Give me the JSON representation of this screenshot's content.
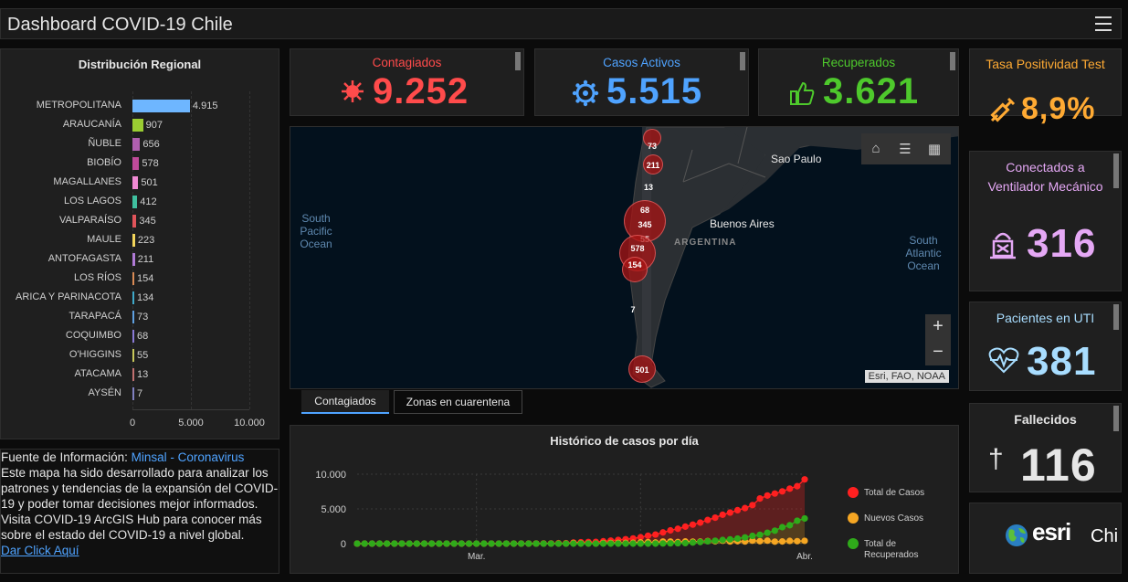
{
  "header": {
    "title": "Dashboard COVID-19 Chile"
  },
  "regional": {
    "title": "Distribución Regional",
    "rows": [
      {
        "label": "METROPOLITANA",
        "value": 4915,
        "display": "4.915",
        "color": "#6eb6ff"
      },
      {
        "label": "ARAUCANÍA",
        "value": 907,
        "display": "907",
        "color": "#9acd32"
      },
      {
        "label": "ÑUBLE",
        "value": 656,
        "display": "656",
        "color": "#b05fb0"
      },
      {
        "label": "BIOBÍO",
        "value": 578,
        "display": "578",
        "color": "#c04a9a"
      },
      {
        "label": "MAGALLANES",
        "value": 501,
        "display": "501",
        "color": "#f08ad4"
      },
      {
        "label": "LOS LAGOS",
        "value": 412,
        "display": "412",
        "color": "#3fbf9f"
      },
      {
        "label": "VALPARAÍSO",
        "value": 345,
        "display": "345",
        "color": "#e0545a"
      },
      {
        "label": "MAULE",
        "value": 223,
        "display": "223",
        "color": "#f3d55b"
      },
      {
        "label": "ANTOFAGASTA",
        "value": 211,
        "display": "211",
        "color": "#b07ad6"
      },
      {
        "label": "LOS RÍOS",
        "value": 154,
        "display": "154",
        "color": "#d98b55"
      },
      {
        "label": "ARICA Y PARINACOTA",
        "value": 134,
        "display": "134",
        "color": "#3fa9c9"
      },
      {
        "label": "TARAPACÁ",
        "value": 73,
        "display": "73",
        "color": "#5fa0e0"
      },
      {
        "label": "COQUIMBO",
        "value": 68,
        "display": "68",
        "color": "#8a7ad6"
      },
      {
        "label": "O'HIGGINS",
        "value": 55,
        "display": "55",
        "color": "#c7c75a"
      },
      {
        "label": "ATACAMA",
        "value": 13,
        "display": "13",
        "color": "#c07070"
      },
      {
        "label": "AYSÉN",
        "value": 7,
        "display": "7",
        "color": "#8080c0"
      }
    ],
    "ticks": [
      "0",
      "5.000",
      "10.000"
    ],
    "xmax": 10000
  },
  "info": {
    "prefix": "Fuente de Información: ",
    "source_link": "Minsal - Coronavirus",
    "body1": "Este mapa ha sido desarrollado para analizar los patrones y tendencias de la expansión del COVID-19 y poder tomar decisiones mejor informados.",
    "body2": "Visita COVID-19 ArcGIS Hub para conocer más sobre el estado del COVID-19 a nivel global.",
    "more_link": "Dar Click Aquí"
  },
  "kpis": {
    "contagiados": {
      "label": "Contagiados",
      "value": "9.252",
      "color": "#ff4b4b"
    },
    "activos": {
      "label": "Casos Activos",
      "value": "5.515",
      "color": "#4fa3ff"
    },
    "recuperados": {
      "label": "Recuperados",
      "value": "3.621",
      "color": "#4ec92c"
    }
  },
  "side": {
    "positividad": {
      "label": "Tasa Positividad Test",
      "value": "8,9%",
      "color": "#ffaa33"
    },
    "ventilador": {
      "label_line1": "Conectados a",
      "label_line2": "Ventilador Mecánico",
      "value": "316",
      "color": "#e5a8f5"
    },
    "uti": {
      "label": "Pacientes en UTI",
      "value": "381",
      "color": "#a8ddff"
    },
    "fallecidos": {
      "label": "Fallecidos",
      "value": "116",
      "color": "#e6e6e6"
    },
    "brand": {
      "logo": "esri",
      "suffix": "Chi"
    }
  },
  "map": {
    "ocean_left": [
      "South",
      "Pacific",
      "Ocean"
    ],
    "ocean_right": [
      "South",
      "Atlantic",
      "Ocean"
    ],
    "country": "ARGENTINA",
    "city_sp": "Sao Paulo",
    "city_ba": "Buenos Aires",
    "attribution": "Esri, FAO, NOAA",
    "clusters": [
      "73",
      "211",
      "13",
      "68",
      "345",
      "55",
      "578",
      "154",
      "7",
      "501"
    ],
    "zoom_in": "+",
    "zoom_out": "−"
  },
  "tabs": {
    "active": "Contagiados",
    "inactive": "Zonas en cuarentena"
  },
  "history": {
    "title": "Histórico de casos por día",
    "yticks": [
      "10.000",
      "5.000",
      "0"
    ],
    "xticks": [
      "Mar.",
      "Abr."
    ],
    "legend": [
      "Total de Casos",
      "Nuevos Casos",
      "Total de Recuperados"
    ]
  },
  "chart_data": {
    "type": "line",
    "title": "Histórico de casos por día",
    "xlabel": "",
    "ylabel": "",
    "ylim": [
      0,
      10000
    ],
    "x_tick_labels": [
      "Mar.",
      "Abr."
    ],
    "series": [
      {
        "name": "Total de Casos",
        "color": "#ff2020",
        "values": [
          0,
          0,
          0,
          0,
          0,
          0,
          0,
          0,
          0,
          0,
          0,
          0,
          0,
          0,
          0,
          0,
          1,
          1,
          3,
          4,
          7,
          10,
          13,
          17,
          23,
          33,
          43,
          61,
          75,
          156,
          201,
          238,
          250,
          342,
          434,
          537,
          632,
          746,
          922,
          1142,
          1306,
          1610,
          1909,
          2139,
          2449,
          2738,
          3031,
          3404,
          3737,
          4161,
          4471,
          4815,
          5116,
          5546,
          6501,
          6927,
          7213,
          7525,
          7917,
          8273,
          9252
        ]
      },
      {
        "name": "Nuevos Casos",
        "color": "#f5a623",
        "values": [
          0,
          0,
          0,
          0,
          0,
          0,
          0,
          0,
          0,
          0,
          0,
          0,
          0,
          0,
          0,
          0,
          1,
          0,
          2,
          1,
          3,
          3,
          3,
          4,
          6,
          10,
          10,
          18,
          14,
          81,
          45,
          37,
          12,
          92,
          92,
          103,
          95,
          114,
          176,
          220,
          164,
          304,
          299,
          230,
          310,
          289,
          293,
          373,
          333,
          424,
          310,
          344,
          301,
          430,
          355,
          426,
          286,
          312,
          392,
          356,
          400
        ]
      },
      {
        "name": "Total de Recuperados",
        "color": "#2faa1a",
        "values": [
          0,
          0,
          0,
          0,
          0,
          0,
          0,
          0,
          0,
          0,
          0,
          0,
          0,
          0,
          0,
          0,
          0,
          0,
          0,
          0,
          0,
          0,
          0,
          0,
          0,
          0,
          0,
          0,
          0,
          0,
          0,
          0,
          0,
          0,
          0,
          0,
          0,
          0,
          0,
          0,
          0,
          22,
          43,
          61,
          75,
          156,
          234,
          335,
          417,
          528,
          619,
          728,
          898,
          1115,
          1274,
          1571,
          1864,
          2367,
          2646,
          3299,
          3621
        ]
      }
    ]
  }
}
